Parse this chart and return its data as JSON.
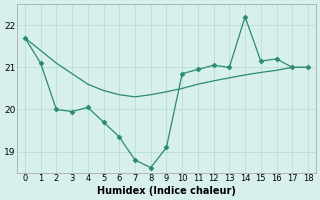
{
  "xlabel": "Humidex (Indice chaleur)",
  "x_values": [
    0,
    1,
    2,
    3,
    4,
    5,
    6,
    7,
    8,
    9,
    10,
    11,
    12,
    13,
    14,
    15,
    16,
    17,
    18
  ],
  "jagged_y": [
    21.7,
    21.1,
    20.0,
    19.95,
    20.05,
    19.7,
    19.35,
    18.8,
    18.62,
    19.1,
    20.85,
    20.95,
    21.05,
    21.0,
    22.2,
    21.15,
    21.2,
    21.0,
    21.0
  ],
  "smooth_y": [
    21.7,
    21.4,
    21.1,
    20.85,
    20.6,
    20.45,
    20.35,
    20.3,
    20.35,
    20.42,
    20.5,
    20.6,
    20.68,
    20.75,
    20.82,
    20.88,
    20.93,
    21.0,
    21.0
  ],
  "ylim": [
    18.5,
    22.5
  ],
  "yticks": [
    19,
    20,
    21,
    22
  ],
  "xlim": [
    -0.5,
    18.5
  ],
  "line_color": "#2a8a72",
  "bg_color": "#d8f0ec",
  "grid_color": "#b8ddd8",
  "marker": "D",
  "markersize": 2.5,
  "linewidth": 0.9,
  "xlabel_fontsize": 7,
  "tick_fontsize": 6,
  "ytick_fontsize": 6.5
}
